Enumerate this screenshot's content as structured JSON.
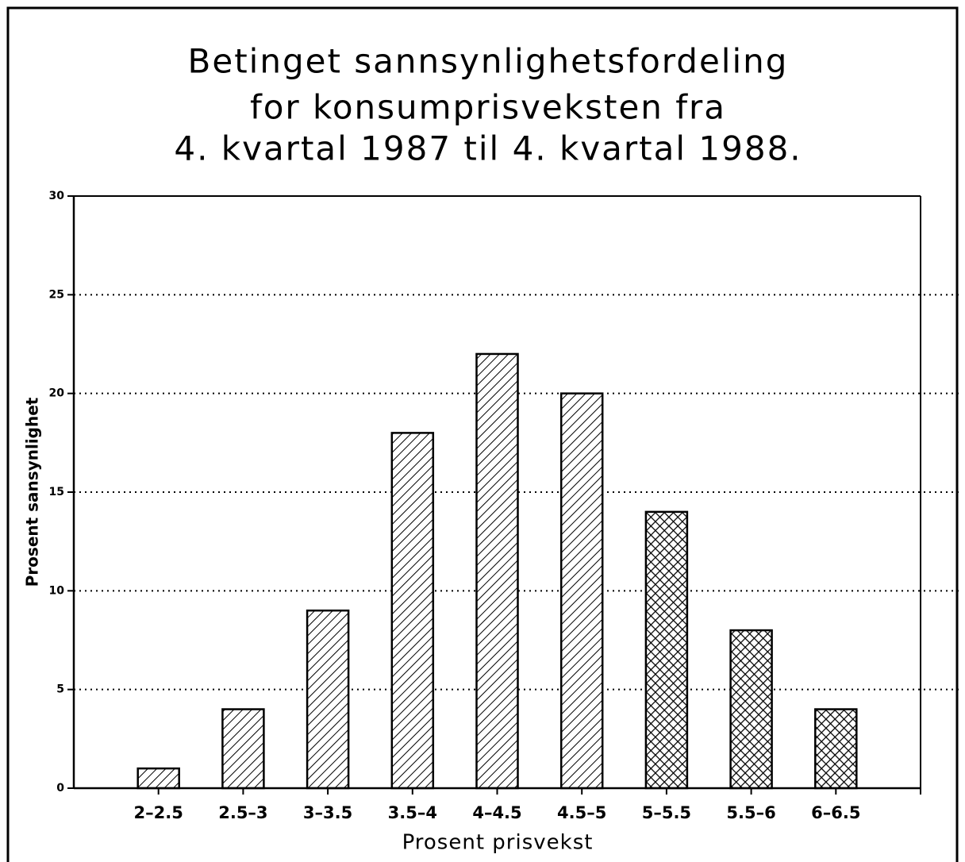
{
  "chart_data": {
    "type": "bar",
    "title": [
      "Betinget sannsynlighetsfordeling",
      "for konsumprisveksten fra",
      "4. kvartal 1987 til 4. kvartal 1988."
    ],
    "x_label": "Prosent prisvekst",
    "y_label": "Prosent sansynlighet",
    "categories": [
      "2–2.5",
      "2.5–3",
      "3–3.5",
      "3.5–4",
      "4–4.5",
      "4.5–5",
      "5–5.5",
      "5.5–6",
      "6–6.5"
    ],
    "values": [
      1,
      4,
      9,
      18,
      22,
      20,
      14,
      8,
      4
    ],
    "patterns": [
      "hatch",
      "hatch",
      "hatch",
      "hatch",
      "hatch",
      "hatch",
      "crosshatch",
      "crosshatch",
      "crosshatch"
    ],
    "color": "#000000",
    "ylim": [
      0,
      30
    ],
    "yticks": [
      0,
      5,
      10,
      15,
      20,
      25,
      30
    ],
    "grid": true
  }
}
